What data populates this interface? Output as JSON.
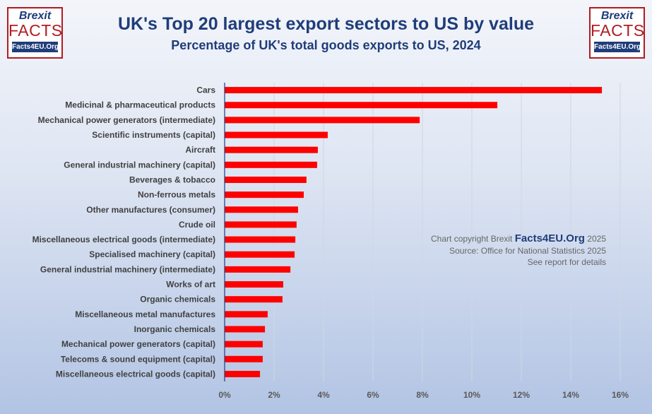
{
  "logo": {
    "line1": "Brexit",
    "line2": "FACTS",
    "line3": "Facts4EU.Org"
  },
  "notes": {
    "copyright_prefix": "Chart copyright Brexit",
    "copyright_brand": "Facts4EU.Org",
    "copyright_year": "2025",
    "source": "Source: Office for National Statistics 2025",
    "details": "See report for details"
  },
  "colors": {
    "bar": "#ff0000",
    "title": "#1f3d7a"
  },
  "chart_data": {
    "type": "bar",
    "orientation": "horizontal",
    "title": "UK's Top 20 largest export sectors to US by value",
    "subtitle": "Percentage of UK's total goods exports to US, 2024",
    "categories": [
      "Cars",
      "Medicinal & pharmaceutical products",
      "Mechanical power generators (intermediate)",
      "Scientific instruments (capital)",
      "Aircraft",
      "General industrial machinery (capital)",
      "Beverages & tobacco",
      "Non-ferrous metals",
      "Other manufactures (consumer)",
      "Crude oil",
      "Miscellaneous electrical goods (intermediate)",
      "Specialised machinery (capital)",
      "General industrial machinery (intermediate)",
      "Works of art",
      "Organic chemicals",
      "Miscellaneous metal manufactures",
      "Inorganic chemicals",
      "Mechanical power generators (capital)",
      "Telecoms & sound equipment (capital)",
      "Miscellaneous electrical goods (capital)"
    ],
    "values": [
      15.26,
      11.03,
      7.89,
      4.17,
      3.77,
      3.74,
      3.31,
      3.2,
      2.97,
      2.91,
      2.86,
      2.83,
      2.66,
      2.37,
      2.34,
      1.74,
      1.63,
      1.54,
      1.54,
      1.43
    ],
    "xlim": [
      0,
      16
    ],
    "xticks": [
      "0%",
      "2%",
      "4%",
      "6%",
      "8%",
      "10%",
      "12%",
      "14%",
      "16%"
    ],
    "grid": true
  }
}
